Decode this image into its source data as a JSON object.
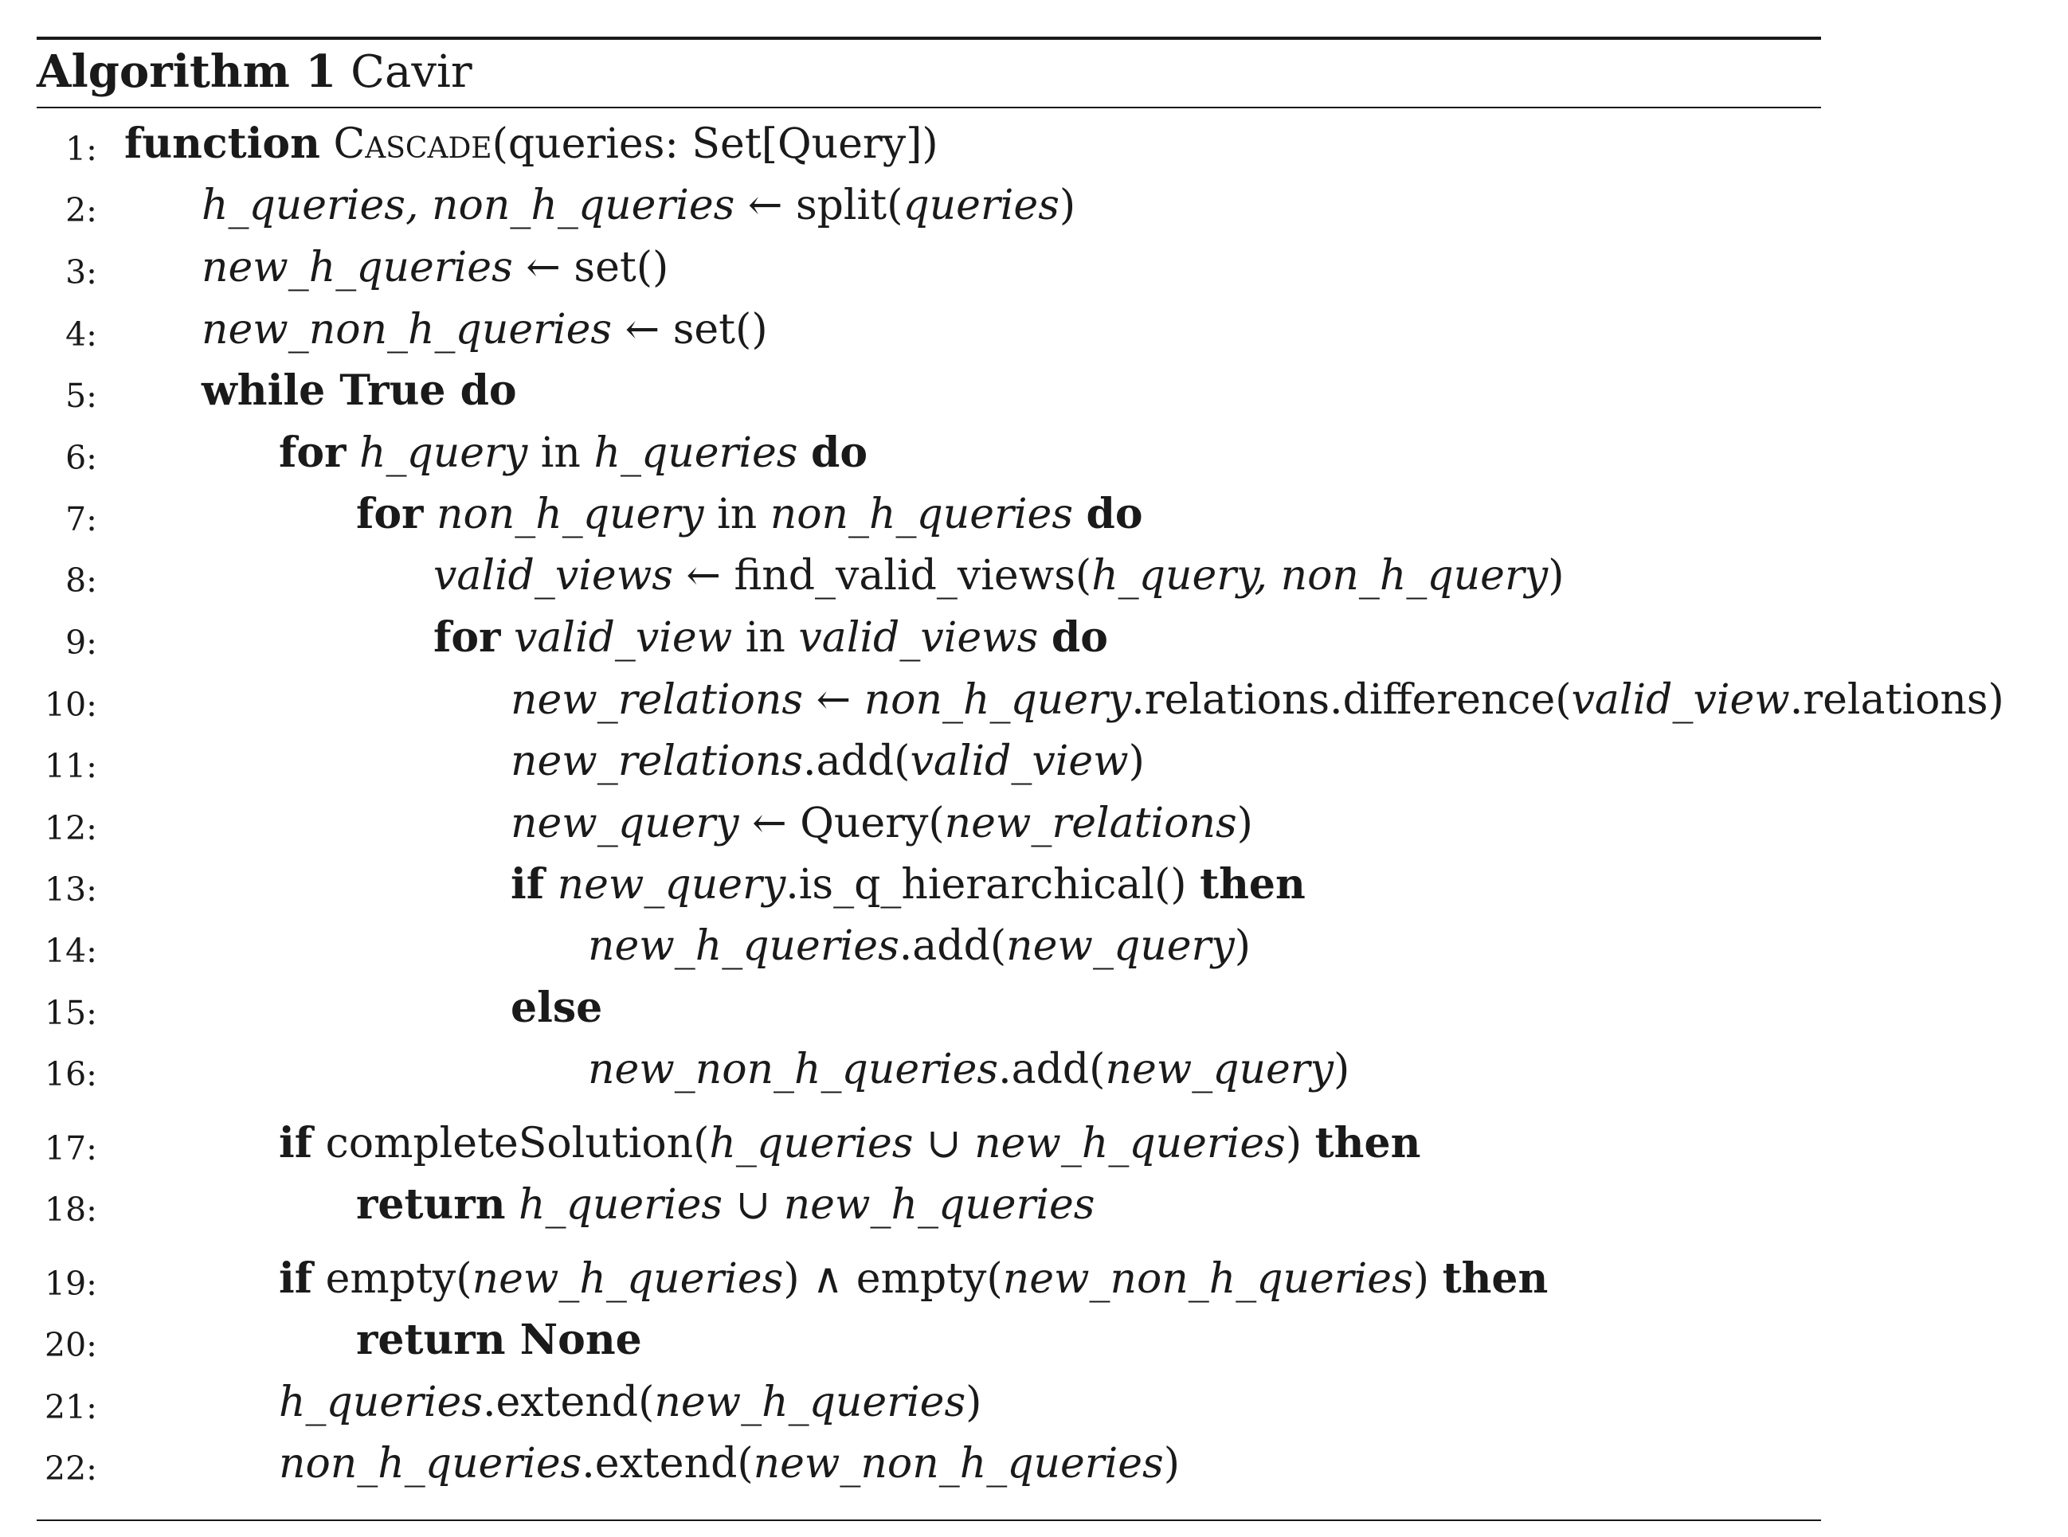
{
  "algorithm": {
    "label": "Algorithm 1",
    "name": "Cavir",
    "lines": [
      {
        "number": "1:",
        "indent": 0,
        "tokens": [
          {
            "t": "function",
            "s": "kw"
          },
          {
            "t": " ",
            "s": ""
          },
          {
            "t": "Cascade",
            "s": "sc"
          },
          {
            "t": "(queries: Set[Query])",
            "s": ""
          }
        ]
      },
      {
        "number": "2:",
        "indent": 1,
        "tokens": [
          {
            "t": "h_queries, non_h_queries",
            "s": "v"
          },
          {
            "t": " ← split(",
            "s": ""
          },
          {
            "t": "queries",
            "s": "v"
          },
          {
            "t": ")",
            "s": ""
          }
        ]
      },
      {
        "number": "3:",
        "indent": 1,
        "tokens": [
          {
            "t": "new_h_queries",
            "s": "v"
          },
          {
            "t": " ← set()",
            "s": ""
          }
        ]
      },
      {
        "number": "4:",
        "indent": 1,
        "tokens": [
          {
            "t": "new_non_h_queries",
            "s": "v"
          },
          {
            "t": " ← set()",
            "s": ""
          }
        ]
      },
      {
        "number": "5:",
        "indent": 1,
        "tokens": [
          {
            "t": "while True do",
            "s": "kw"
          }
        ]
      },
      {
        "number": "6:",
        "indent": 2,
        "tokens": [
          {
            "t": "for",
            "s": "kw"
          },
          {
            "t": " ",
            "s": ""
          },
          {
            "t": "h_query",
            "s": "v"
          },
          {
            "t": " in ",
            "s": ""
          },
          {
            "t": "h_queries",
            "s": "v"
          },
          {
            "t": " ",
            "s": ""
          },
          {
            "t": "do",
            "s": "kw"
          }
        ]
      },
      {
        "number": "7:",
        "indent": 3,
        "tokens": [
          {
            "t": "for",
            "s": "kw"
          },
          {
            "t": " ",
            "s": ""
          },
          {
            "t": "non_h_query",
            "s": "v"
          },
          {
            "t": " in ",
            "s": ""
          },
          {
            "t": "non_h_queries",
            "s": "v"
          },
          {
            "t": " ",
            "s": ""
          },
          {
            "t": "do",
            "s": "kw"
          }
        ]
      },
      {
        "number": "8:",
        "indent": 4,
        "tokens": [
          {
            "t": "valid_views",
            "s": "v"
          },
          {
            "t": " ← find_valid_views(",
            "s": ""
          },
          {
            "t": "h_query, non_h_query",
            "s": "v"
          },
          {
            "t": ")",
            "s": ""
          }
        ]
      },
      {
        "number": "9:",
        "indent": 4,
        "tokens": [
          {
            "t": "for",
            "s": "kw"
          },
          {
            "t": " ",
            "s": ""
          },
          {
            "t": "valid_view",
            "s": "v"
          },
          {
            "t": " in ",
            "s": ""
          },
          {
            "t": "valid_views",
            "s": "v"
          },
          {
            "t": " ",
            "s": ""
          },
          {
            "t": "do",
            "s": "kw"
          }
        ]
      },
      {
        "number": "10:",
        "indent": 5,
        "tokens": [
          {
            "t": "new_relations",
            "s": "v"
          },
          {
            "t": " ← ",
            "s": ""
          },
          {
            "t": "non_h_query",
            "s": "v"
          },
          {
            "t": ".relations.difference(",
            "s": ""
          },
          {
            "t": "valid_view",
            "s": "v"
          },
          {
            "t": ".relations)",
            "s": ""
          }
        ]
      },
      {
        "number": "11:",
        "indent": 5,
        "tokens": [
          {
            "t": "new_relations",
            "s": "v"
          },
          {
            "t": ".add(",
            "s": ""
          },
          {
            "t": "valid_view",
            "s": "v"
          },
          {
            "t": ")",
            "s": ""
          }
        ]
      },
      {
        "number": "12:",
        "indent": 5,
        "tokens": [
          {
            "t": "new_query",
            "s": "v"
          },
          {
            "t": " ← Query(",
            "s": ""
          },
          {
            "t": "new_relations",
            "s": "v"
          },
          {
            "t": ")",
            "s": ""
          }
        ]
      },
      {
        "number": "13:",
        "indent": 5,
        "tokens": [
          {
            "t": "if",
            "s": "kw"
          },
          {
            "t": " ",
            "s": ""
          },
          {
            "t": "new_query",
            "s": "v"
          },
          {
            "t": ".is_q_hierarchical() ",
            "s": ""
          },
          {
            "t": "then",
            "s": "kw"
          }
        ]
      },
      {
        "number": "14:",
        "indent": 6,
        "tokens": [
          {
            "t": "new_h_queries",
            "s": "v"
          },
          {
            "t": ".add(",
            "s": ""
          },
          {
            "t": "new_query",
            "s": "v"
          },
          {
            "t": ")",
            "s": ""
          }
        ]
      },
      {
        "number": "15:",
        "indent": 5,
        "tokens": [
          {
            "t": "else",
            "s": "kw"
          }
        ]
      },
      {
        "number": "16:",
        "indent": 6,
        "tokens": [
          {
            "t": "new_non_h_queries",
            "s": "v"
          },
          {
            "t": ".add(",
            "s": ""
          },
          {
            "t": "new_query",
            "s": "v"
          },
          {
            "t": ")",
            "s": ""
          }
        ]
      },
      {
        "number": "17:",
        "indent": 2,
        "tokens": [
          {
            "t": "if",
            "s": "kw"
          },
          {
            "t": " completeSolution(",
            "s": ""
          },
          {
            "t": "h_queries",
            "s": "v"
          },
          {
            "t": " ∪ ",
            "s": ""
          },
          {
            "t": "new_h_queries",
            "s": "v"
          },
          {
            "t": ") ",
            "s": ""
          },
          {
            "t": "then",
            "s": "kw"
          }
        ]
      },
      {
        "number": "18:",
        "indent": 3,
        "tokens": [
          {
            "t": "return",
            "s": "kw"
          },
          {
            "t": " ",
            "s": ""
          },
          {
            "t": "h_queries",
            "s": "v"
          },
          {
            "t": " ∪ ",
            "s": ""
          },
          {
            "t": "new_h_queries",
            "s": "v"
          }
        ]
      },
      {
        "number": "19:",
        "indent": 2,
        "tokens": [
          {
            "t": "if",
            "s": "kw"
          },
          {
            "t": " empty(",
            "s": ""
          },
          {
            "t": "new_h_queries",
            "s": "v"
          },
          {
            "t": ") ∧ empty(",
            "s": ""
          },
          {
            "t": "new_non_h_queries",
            "s": "v"
          },
          {
            "t": ") ",
            "s": ""
          },
          {
            "t": "then",
            "s": "kw"
          }
        ]
      },
      {
        "number": "20:",
        "indent": 3,
        "tokens": [
          {
            "t": "return None",
            "s": "kw"
          }
        ]
      },
      {
        "number": "21:",
        "indent": 2,
        "tokens": [
          {
            "t": "h_queries",
            "s": "v"
          },
          {
            "t": ".extend(",
            "s": ""
          },
          {
            "t": "new_h_queries",
            "s": "v"
          },
          {
            "t": ")",
            "s": ""
          }
        ]
      },
      {
        "number": "22:",
        "indent": 2,
        "tokens": [
          {
            "t": "non_h_queries",
            "s": "v"
          },
          {
            "t": ".extend(",
            "s": ""
          },
          {
            "t": "new_non_h_queries",
            "s": "v"
          },
          {
            "t": ")",
            "s": ""
          }
        ]
      }
    ]
  }
}
